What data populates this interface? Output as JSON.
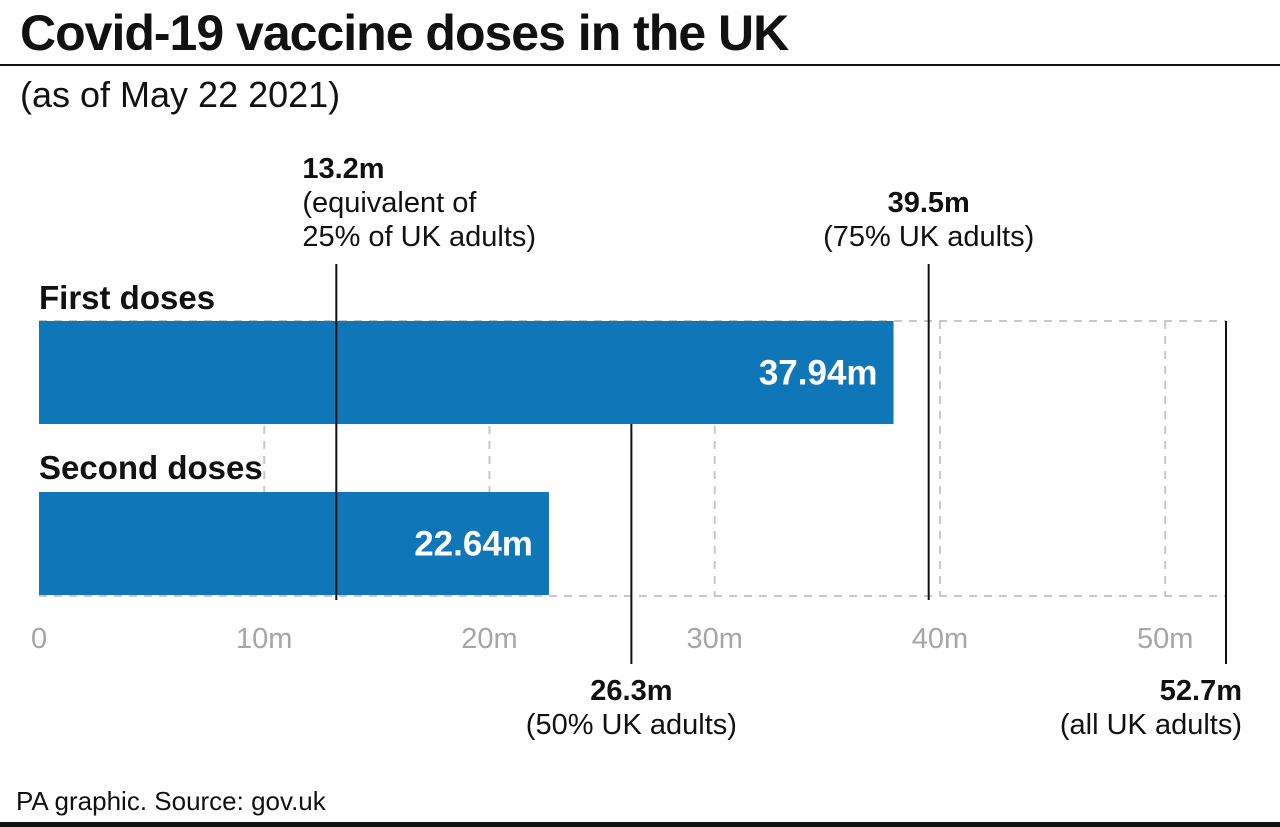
{
  "title": "Covid-19 vaccine doses in the UK",
  "subtitle": "(as of May 22 2021)",
  "footer": "PA graphic. Source: gov.uk",
  "colors": {
    "bar": "#0f76b8",
    "grid": "#c8c8c8",
    "tick": "#a6a6a6",
    "text": "#111111",
    "bar_label": "#ffffff"
  },
  "chart_data": {
    "type": "bar",
    "orientation": "horizontal",
    "categories": [
      "First doses",
      "Second doses"
    ],
    "values": [
      37.94,
      22.64
    ],
    "value_labels": [
      "37.94m",
      "22.64m"
    ],
    "xlim": [
      0,
      52.7
    ],
    "xticks": [
      0,
      10,
      20,
      30,
      40,
      50
    ],
    "xtick_labels": [
      "0",
      "10m",
      "20m",
      "30m",
      "40m",
      "50m"
    ],
    "grid": true,
    "reference_lines": [
      {
        "value": 13.2,
        "label": "13.2m",
        "note": [
          "(equivalent of",
          "25% of UK adults)"
        ],
        "position": "top"
      },
      {
        "value": 26.3,
        "label": "26.3m",
        "note": [
          "(50% UK adults)"
        ],
        "position": "bottom"
      },
      {
        "value": 39.5,
        "label": "39.5m",
        "note": [
          "(75% UK adults)"
        ],
        "position": "top"
      },
      {
        "value": 52.7,
        "label": "52.7m",
        "note": [
          "(all UK adults)"
        ],
        "position": "bottom"
      }
    ]
  }
}
